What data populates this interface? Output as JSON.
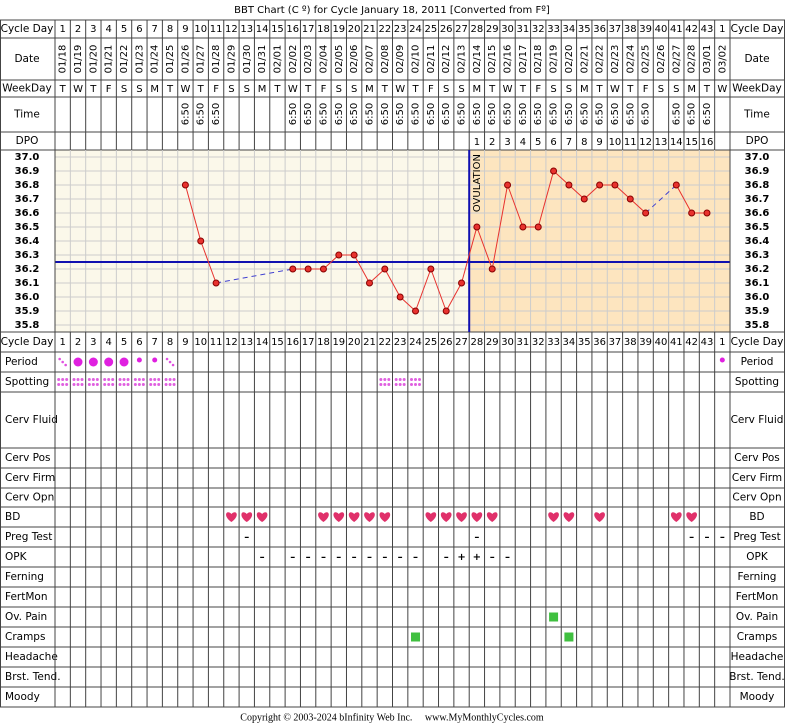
{
  "chart_data": {
    "type": "line",
    "title": "BBT Chart (C º) for Cycle January 18, 2011  [Converted from Fº]",
    "row_labels": {
      "cycle_day": "Cycle Day",
      "date": "Date",
      "weekday": "WeekDay",
      "time": "Time",
      "dpo": "DPO"
    },
    "categories": [
      1,
      2,
      3,
      4,
      5,
      6,
      7,
      8,
      9,
      10,
      11,
      12,
      13,
      14,
      15,
      16,
      17,
      18,
      19,
      20,
      21,
      22,
      23,
      24,
      25,
      26,
      27,
      28,
      29,
      30,
      31,
      32,
      33,
      34,
      35,
      36,
      37,
      38,
      39,
      40,
      41,
      42,
      43,
      1
    ],
    "dates": [
      "01/18",
      "01/19",
      "01/20",
      "01/21",
      "01/22",
      "01/23",
      "01/24",
      "01/25",
      "01/26",
      "01/27",
      "01/28",
      "01/29",
      "01/30",
      "01/31",
      "02/01",
      "02/02",
      "02/03",
      "02/04",
      "02/05",
      "02/06",
      "02/07",
      "02/08",
      "02/09",
      "02/10",
      "02/11",
      "02/12",
      "02/13",
      "02/14",
      "02/15",
      "02/16",
      "02/17",
      "02/18",
      "02/19",
      "02/20",
      "02/21",
      "02/22",
      "02/23",
      "02/24",
      "02/25",
      "02/26",
      "02/27",
      "02/28",
      "03/01",
      "03/02"
    ],
    "weekdays": [
      "T",
      "W",
      "T",
      "F",
      "S",
      "S",
      "M",
      "T",
      "W",
      "T",
      "F",
      "S",
      "S",
      "M",
      "T",
      "W",
      "T",
      "F",
      "S",
      "S",
      "M",
      "T",
      "W",
      "T",
      "F",
      "S",
      "S",
      "M",
      "T",
      "W",
      "T",
      "F",
      "S",
      "S",
      "M",
      "T",
      "W",
      "T",
      "F",
      "S",
      "S",
      "M",
      "T",
      "W"
    ],
    "times": [
      null,
      null,
      null,
      null,
      null,
      null,
      null,
      null,
      "6:50",
      "6:50",
      "6:50",
      null,
      null,
      null,
      null,
      "6:50",
      "6:50",
      "6:50",
      "6:50",
      "6:50",
      "6:50",
      "6:50",
      "6:50",
      "6:50",
      "6:50",
      "6:50",
      "6:50",
      "6:50",
      "6:50",
      "6:50",
      "6:50",
      "6:50",
      "6:50",
      "6:50",
      "6:50",
      "6:50",
      "6:50",
      "6:50",
      "6:50",
      null,
      "6:50",
      "6:50",
      "6:50",
      null
    ],
    "dpo": [
      null,
      null,
      null,
      null,
      null,
      null,
      null,
      null,
      null,
      null,
      null,
      null,
      null,
      null,
      null,
      null,
      null,
      null,
      null,
      null,
      null,
      null,
      null,
      null,
      null,
      null,
      null,
      1,
      2,
      3,
      4,
      5,
      6,
      7,
      8,
      9,
      10,
      11,
      12,
      13,
      14,
      15,
      16,
      null
    ],
    "values": [
      null,
      null,
      null,
      null,
      null,
      null,
      null,
      null,
      36.8,
      36.4,
      36.1,
      null,
      null,
      null,
      null,
      36.2,
      36.2,
      36.2,
      36.3,
      36.3,
      36.1,
      36.2,
      36.0,
      35.9,
      36.2,
      35.9,
      36.1,
      36.5,
      36.2,
      36.8,
      36.5,
      36.5,
      36.9,
      36.8,
      36.7,
      36.8,
      36.8,
      36.7,
      36.6,
      null,
      36.8,
      36.6,
      36.6,
      null
    ],
    "color": "#e8322e",
    "ylim": [
      35.75,
      37.05
    ],
    "yticks": [
      {
        "value": 35.8,
        "label": "35.8"
      },
      35.9,
      {
        "value": 36.0,
        "label": "36.0"
      },
      36.1,
      36.2,
      36.3,
      36.4,
      36.5,
      36.6,
      36.7,
      36.8,
      36.9,
      {
        "value": 37.0,
        "label": "37.0"
      }
    ],
    "grid": true,
    "coverline": 36.25,
    "ovulation_line_day": 27.5,
    "annotation": "OVULATION"
  },
  "symptoms": [
    {
      "label": "Period",
      "marks": [
        {
          "col": 1,
          "kind": "spot"
        },
        {
          "col": 2,
          "kind": "heavy"
        },
        {
          "col": 3,
          "kind": "heavy"
        },
        {
          "col": 4,
          "kind": "heavy"
        },
        {
          "col": 5,
          "kind": "heavy"
        },
        {
          "col": 6,
          "kind": "light"
        },
        {
          "col": 7,
          "kind": "light"
        },
        {
          "col": 8,
          "kind": "spot"
        },
        {
          "col": 44,
          "kind": "light"
        }
      ]
    },
    {
      "label": "Spotting",
      "marks": [
        {
          "col": 1,
          "kind": "dots"
        },
        {
          "col": 2,
          "kind": "dots"
        },
        {
          "col": 3,
          "kind": "dots"
        },
        {
          "col": 4,
          "kind": "dots"
        },
        {
          "col": 5,
          "kind": "dots"
        },
        {
          "col": 6,
          "kind": "dots"
        },
        {
          "col": 7,
          "kind": "dots"
        },
        {
          "col": 8,
          "kind": "dots"
        },
        {
          "col": 22,
          "kind": "dots"
        },
        {
          "col": 23,
          "kind": "dots"
        },
        {
          "col": 24,
          "kind": "dots"
        }
      ]
    },
    {
      "label": "Cerv Fluid",
      "marks": []
    },
    {
      "label": "Cerv Pos",
      "marks": []
    },
    {
      "label": "Cerv Firm",
      "marks": []
    },
    {
      "label": "Cerv Opn",
      "marks": []
    },
    {
      "label": "BD",
      "marks": [
        {
          "col": 12,
          "kind": "heart"
        },
        {
          "col": 13,
          "kind": "heart"
        },
        {
          "col": 14,
          "kind": "heart"
        },
        {
          "col": 18,
          "kind": "heart"
        },
        {
          "col": 19,
          "kind": "heart"
        },
        {
          "col": 20,
          "kind": "heart"
        },
        {
          "col": 21,
          "kind": "heart"
        },
        {
          "col": 22,
          "kind": "heart"
        },
        {
          "col": 25,
          "kind": "heart"
        },
        {
          "col": 26,
          "kind": "heart"
        },
        {
          "col": 27,
          "kind": "heart"
        },
        {
          "col": 28,
          "kind": "heart"
        },
        {
          "col": 29,
          "kind": "heart"
        },
        {
          "col": 33,
          "kind": "heart"
        },
        {
          "col": 34,
          "kind": "heart"
        },
        {
          "col": 36,
          "kind": "heart"
        },
        {
          "col": 41,
          "kind": "heart"
        },
        {
          "col": 42,
          "kind": "heart"
        }
      ]
    },
    {
      "label": "Preg Test",
      "marks": [
        {
          "col": 13,
          "text": "–"
        },
        {
          "col": 28,
          "text": "–"
        },
        {
          "col": 42,
          "text": "–"
        },
        {
          "col": 43,
          "text": "–"
        },
        {
          "col": 44,
          "text": "–"
        }
      ]
    },
    {
      "label": "OPK",
      "marks": [
        {
          "col": 14,
          "text": "–"
        },
        {
          "col": 16,
          "text": "–"
        },
        {
          "col": 17,
          "text": "–"
        },
        {
          "col": 18,
          "text": "–"
        },
        {
          "col": 19,
          "text": "–"
        },
        {
          "col": 20,
          "text": "–"
        },
        {
          "col": 21,
          "text": "–"
        },
        {
          "col": 22,
          "text": "–"
        },
        {
          "col": 23,
          "text": "–"
        },
        {
          "col": 24,
          "text": "–"
        },
        {
          "col": 26,
          "text": "–"
        },
        {
          "col": 27,
          "text": "+"
        },
        {
          "col": 28,
          "text": "+"
        },
        {
          "col": 29,
          "text": "–"
        },
        {
          "col": 30,
          "text": "–"
        }
      ]
    },
    {
      "label": "Ferning",
      "marks": []
    },
    {
      "label": "FertMon",
      "marks": []
    },
    {
      "label": "Ov. Pain",
      "marks": [
        {
          "col": 33,
          "kind": "square"
        }
      ]
    },
    {
      "label": "Cramps",
      "marks": [
        {
          "col": 24,
          "kind": "square"
        },
        {
          "col": 34,
          "kind": "square"
        }
      ]
    },
    {
      "label": "Headache",
      "marks": []
    },
    {
      "label": "Brst. Tend.",
      "marks": []
    },
    {
      "label": "Moody",
      "marks": []
    }
  ],
  "footer": "Copyright © 2003-2024 bInfinity Web Inc.     www.MyMonthlyCycles.com"
}
